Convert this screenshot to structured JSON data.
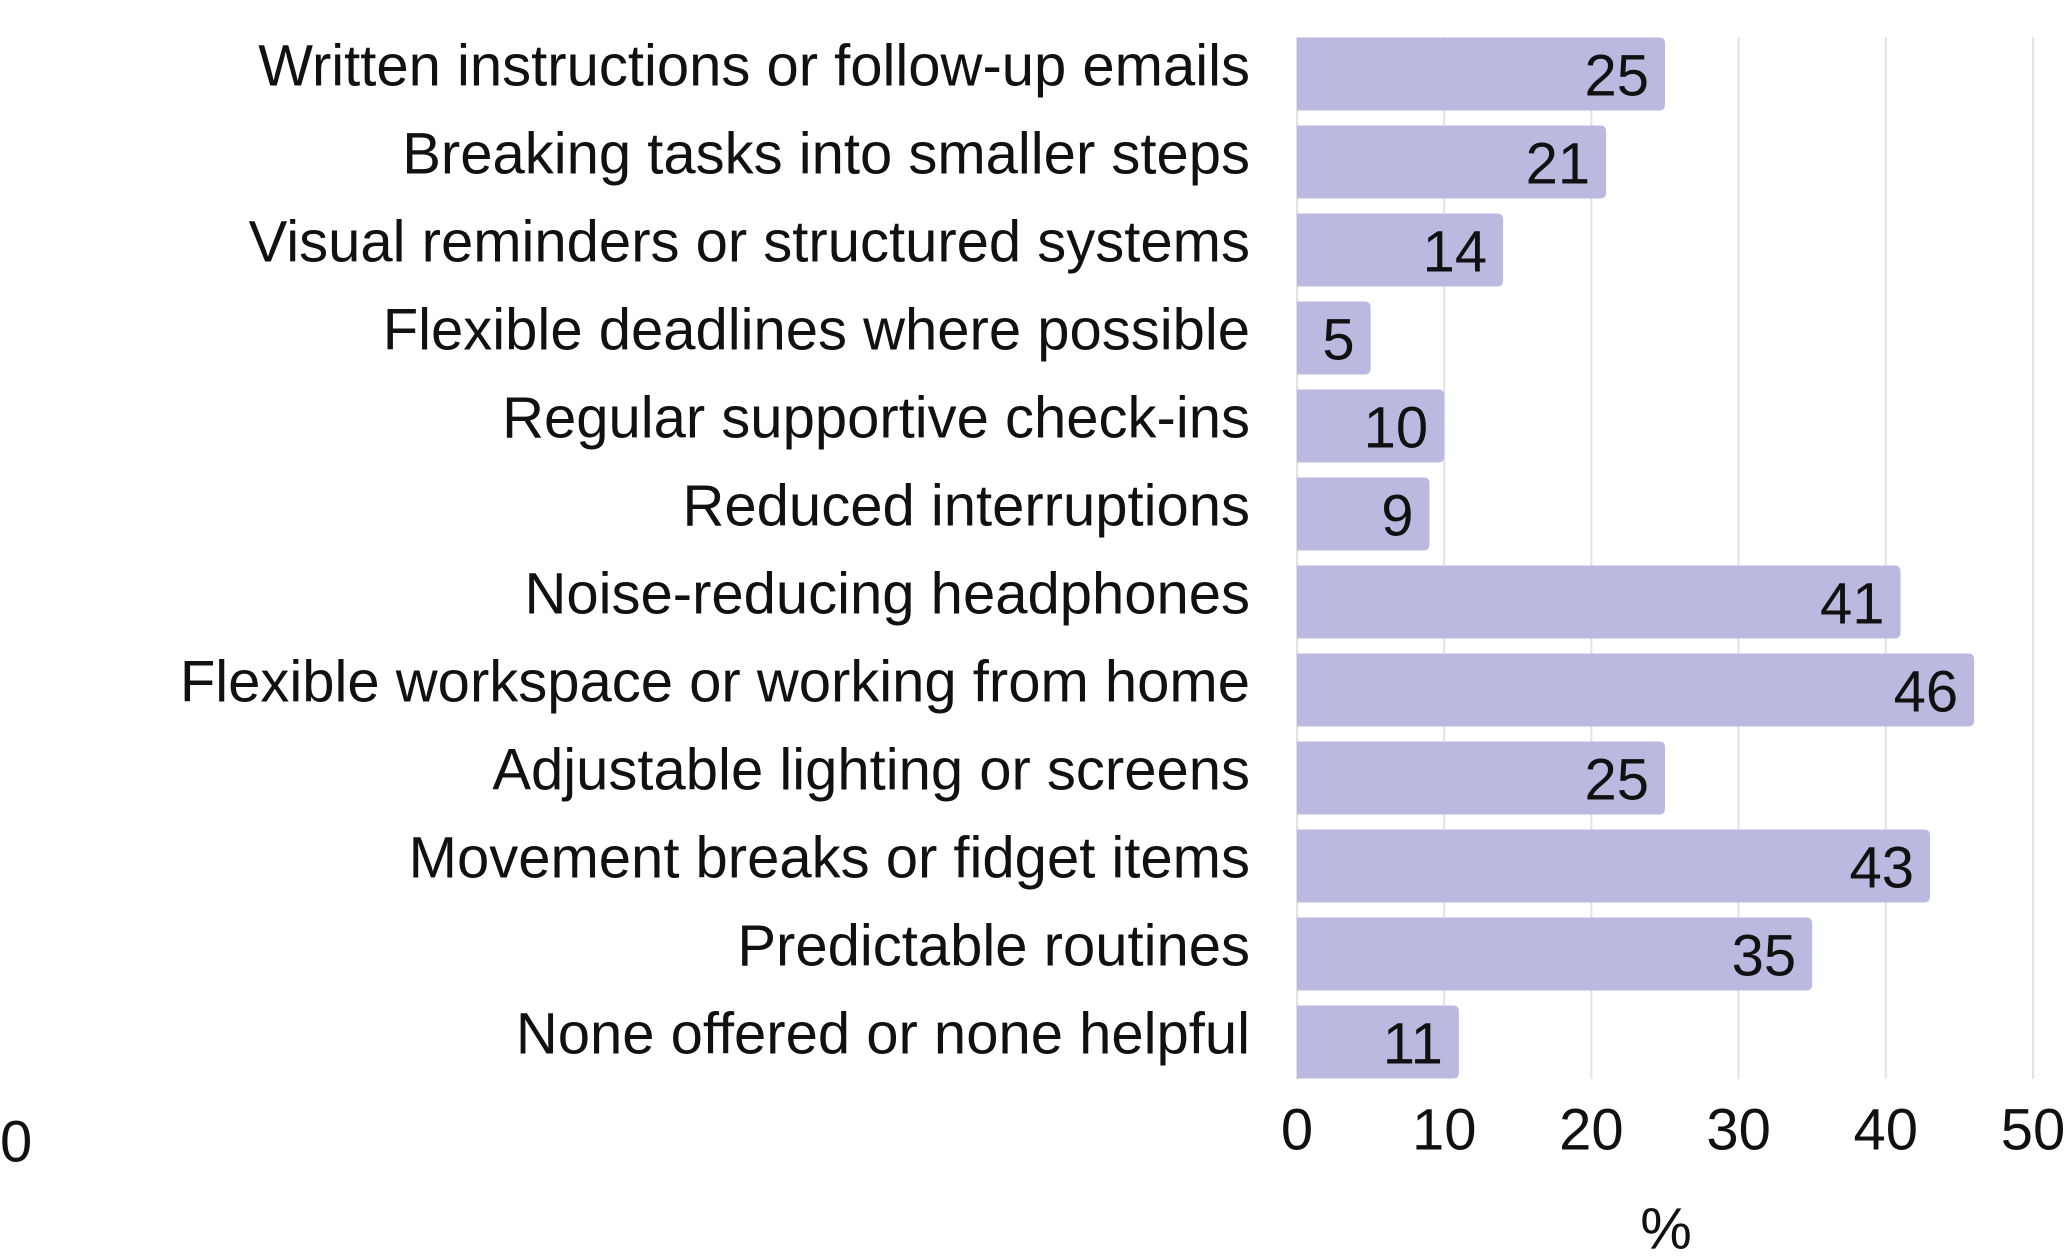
{
  "chart_data": {
    "type": "barh",
    "categories": [
      "Written instructions or follow-up emails",
      "Breaking tasks into smaller steps",
      "Visual reminders or structured systems",
      "Flexible deadlines where possible",
      "Regular supportive check-ins",
      "Reduced interruptions",
      "Noise-reducing headphones",
      "Flexible workspace or working from home",
      "Adjustable lighting or screens",
      "Movement breaks or fidget items",
      "Predictable routines",
      "None offered or none helpful"
    ],
    "values": [
      25,
      21,
      14,
      5,
      10,
      9,
      41,
      46,
      25,
      43,
      35,
      11
    ],
    "color": "#babae0",
    "xlabel": "%",
    "xlim": [
      0,
      50
    ],
    "xticks": [
      0,
      10,
      20,
      30,
      40,
      50
    ],
    "grid": true,
    "stray_text": "0"
  }
}
